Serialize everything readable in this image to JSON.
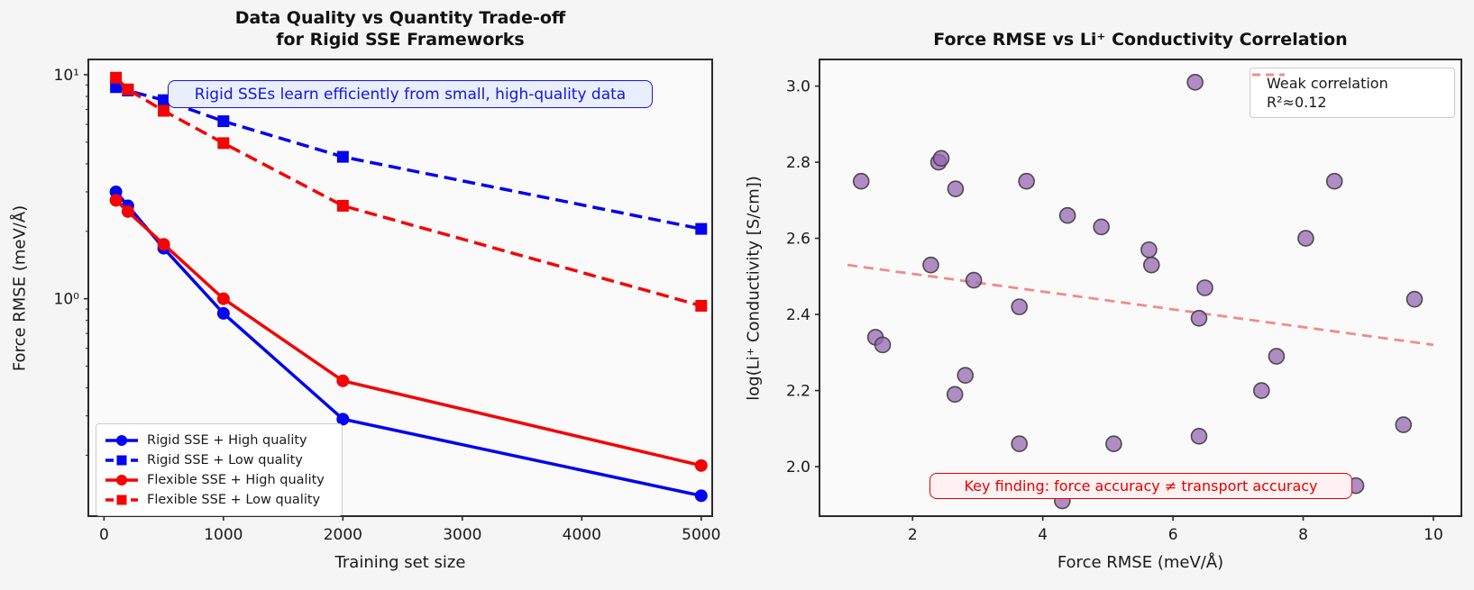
{
  "figure": {
    "background": "#f5f5f5",
    "axes_background": "#fafafa",
    "spine_color": "#2a2a2a",
    "tick_text_color": "#1a1a1a"
  },
  "chart_data": [
    {
      "type": "line",
      "title": "Data Quality vs Quantity Trade-off\nfor Rigid SSE Frameworks",
      "title_lines": [
        "Data Quality vs Quantity Trade-off",
        "for Rigid SSE Frameworks"
      ],
      "xlabel": "Training set size",
      "ylabel": "Force RMSE (meV/Å)",
      "yscale": "log",
      "xlim": [
        -131,
        5092
      ],
      "ylim": [
        0.107,
        11.7
      ],
      "x_ticks": [
        0,
        1000,
        2000,
        3000,
        4000,
        5000
      ],
      "x_tick_labels": [
        "0",
        "1000",
        "2000",
        "3000",
        "4000",
        "5000"
      ],
      "y_ticks": [
        {
          "value": 10,
          "label": "10¹"
        },
        {
          "value": 1,
          "label": "10⁰"
        }
      ],
      "x": [
        100,
        200,
        500,
        1000,
        2000,
        5000
      ],
      "series": [
        {
          "name": "Rigid SSE + High quality",
          "color": "#0404f0",
          "marker": "circle",
          "linestyle": "solid",
          "values": [
            3.0,
            2.6,
            1.68,
            0.86,
            0.29,
            0.132
          ]
        },
        {
          "name": "Rigid SSE + Low quality",
          "color": "#0404f0",
          "marker": "square",
          "linestyle": "dashed",
          "values": [
            8.8,
            8.5,
            7.7,
            6.2,
            4.3,
            2.05
          ]
        },
        {
          "name": "Flexible SSE + High quality",
          "color": "#f40404",
          "marker": "circle",
          "linestyle": "solid",
          "values": [
            2.75,
            2.45,
            1.75,
            1.0,
            0.43,
            0.18
          ]
        },
        {
          "name": "Flexible SSE + Low quality",
          "color": "#f40404",
          "marker": "square",
          "linestyle": "dashed",
          "values": [
            9.7,
            8.6,
            6.9,
            4.95,
            2.6,
            0.93
          ]
        }
      ],
      "annotation": "Rigid SSEs learn efficiently from small, high-quality data",
      "annotation_color": "#1414e0",
      "legend_position": "lower left"
    },
    {
      "type": "scatter",
      "title": "Force RMSE vs Li⁺ Conductivity Correlation",
      "xlabel": "Force RMSE (meV/Å)",
      "ylabel": "log(Li⁺ Conductivity [S/cm])",
      "xlim": [
        0.57,
        10.43
      ],
      "ylim": [
        1.87,
        3.07
      ],
      "x_ticks": [
        2,
        4,
        6,
        8,
        10
      ],
      "x_tick_labels": [
        "2",
        "4",
        "6",
        "8",
        "10"
      ],
      "y_ticks": [
        2.0,
        2.2,
        2.4,
        2.6,
        2.8,
        3.0
      ],
      "y_tick_labels": [
        "2.0",
        "2.2",
        "2.4",
        "2.6",
        "2.8",
        "3.0"
      ],
      "points": [
        [
          1.21,
          2.75
        ],
        [
          1.43,
          2.34
        ],
        [
          1.54,
          2.32
        ],
        [
          2.28,
          2.53
        ],
        [
          2.4,
          2.8
        ],
        [
          2.44,
          2.81
        ],
        [
          2.65,
          2.19
        ],
        [
          2.66,
          2.73
        ],
        [
          2.81,
          2.24
        ],
        [
          2.94,
          2.49
        ],
        [
          3.64,
          2.06
        ],
        [
          3.64,
          2.42
        ],
        [
          3.75,
          2.75
        ],
        [
          4.3,
          1.91
        ],
        [
          4.38,
          2.66
        ],
        [
          4.9,
          2.63
        ],
        [
          5.09,
          2.06
        ],
        [
          5.63,
          2.57
        ],
        [
          5.67,
          2.53
        ],
        [
          6.34,
          3.01
        ],
        [
          6.4,
          2.08
        ],
        [
          6.4,
          2.39
        ],
        [
          6.49,
          2.47
        ],
        [
          7.36,
          2.2
        ],
        [
          7.59,
          2.29
        ],
        [
          8.04,
          2.6
        ],
        [
          8.48,
          2.75
        ],
        [
          8.81,
          1.95
        ],
        [
          9.54,
          2.11
        ],
        [
          9.71,
          2.44
        ]
      ],
      "point_color": "#9767b1",
      "point_alpha": 0.75,
      "point_edge_color": "#3d3d3d",
      "trend": {
        "x": [
          1.0,
          10.0
        ],
        "y": [
          2.53,
          2.32
        ],
        "color": "#F08080",
        "linestyle": "dashed"
      },
      "legend": [
        "Weak correlation",
        "R²≈0.12"
      ],
      "annotation": "Key finding: force accuracy ≠ transport accuracy",
      "annotation_color": "#e60000",
      "legend_position": "upper right"
    }
  ]
}
